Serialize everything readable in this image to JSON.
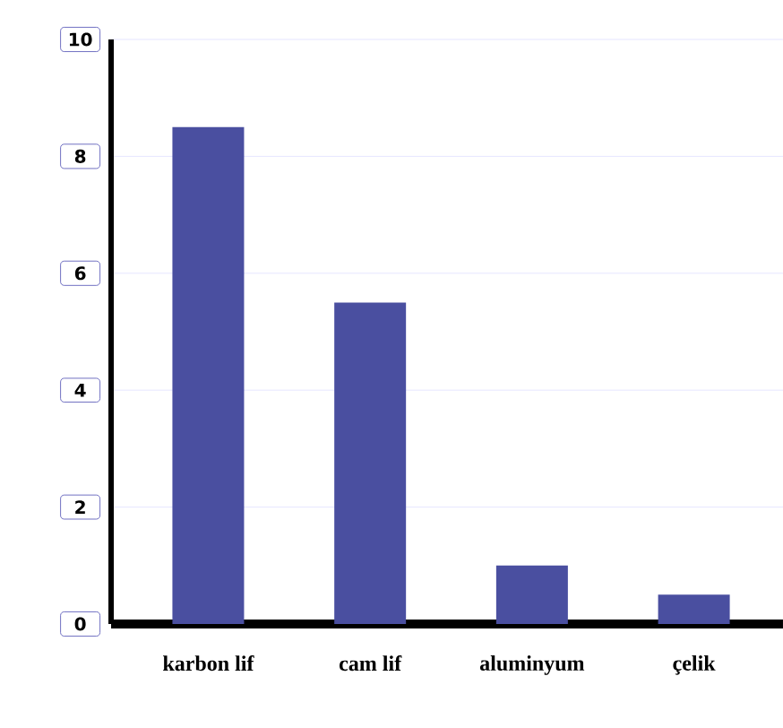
{
  "chart_data": {
    "type": "bar",
    "categories": [
      "karbon lif",
      "cam lif",
      "aluminyum",
      "çelik"
    ],
    "values": [
      8.5,
      5.5,
      1.0,
      0.5
    ],
    "color": "#4a4fa0",
    "ylim": [
      0,
      10
    ],
    "yticks": [
      0,
      2,
      4,
      6,
      8,
      10
    ],
    "grid": "y"
  }
}
